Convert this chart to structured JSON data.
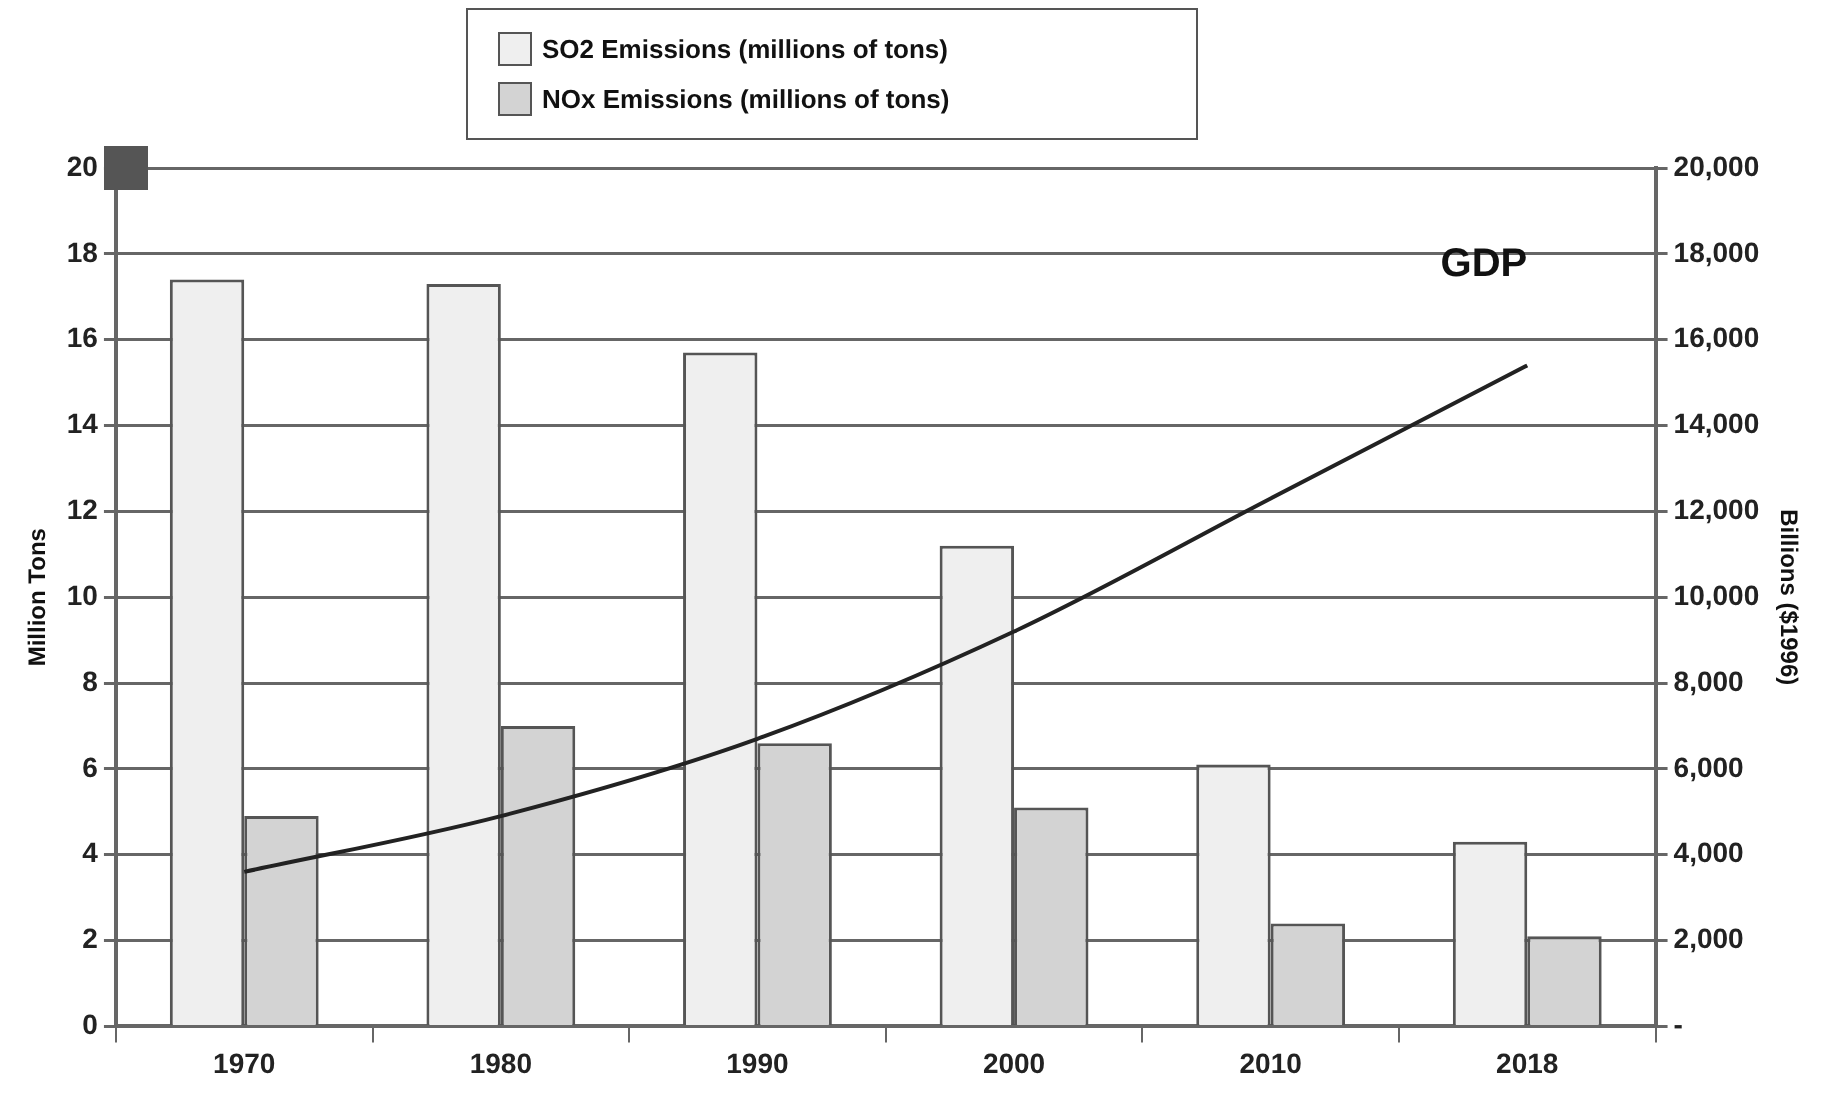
{
  "chart_data": {
    "type": "bar",
    "xlabel": null,
    "ylabel": "Million Tons",
    "y2label": "Billions ($1996)",
    "categories": [
      "1970",
      "1980",
      "1990",
      "2000",
      "2010",
      "2018"
    ],
    "series": [
      {
        "name": "SO2 Emissions (millions of tons)",
        "color": "#efefef",
        "values": [
          17.4,
          17.3,
          15.7,
          11.2,
          6.1,
          4.3
        ]
      },
      {
        "name": "NOx Emissions (millions of tons)",
        "color": "#d3d3d3",
        "values": [
          4.9,
          7.0,
          6.6,
          5.1,
          2.4,
          2.1
        ]
      },
      {
        "name": "GDP",
        "type": "line",
        "axis": "y2",
        "color": "#222222",
        "values": [
          3600,
          4900,
          6700,
          9200,
          12300,
          15400
        ]
      }
    ],
    "ylim": [
      0,
      20
    ],
    "yticks": [
      0,
      2,
      4,
      6,
      8,
      10,
      12,
      14,
      16,
      18,
      20
    ],
    "y2lim": [
      0,
      20000
    ],
    "y2ticks": [
      {
        "value": 0,
        "label": "-"
      },
      {
        "value": 2000,
        "label": "2,000"
      },
      {
        "value": 4000,
        "label": "4,000"
      },
      {
        "value": 6000,
        "label": "6,000"
      },
      {
        "value": 8000,
        "label": "8,000"
      },
      {
        "value": 10000,
        "label": "10,000"
      },
      {
        "value": 12000,
        "label": "12,000"
      },
      {
        "value": 14000,
        "label": "14,000"
      },
      {
        "value": 16000,
        "label": "16,000"
      },
      {
        "value": 18000,
        "label": "18,000"
      },
      {
        "value": 20000,
        "label": "20,000"
      }
    ],
    "grid": "y",
    "legend": "top",
    "marker": "none",
    "line_style": "solid"
  }
}
